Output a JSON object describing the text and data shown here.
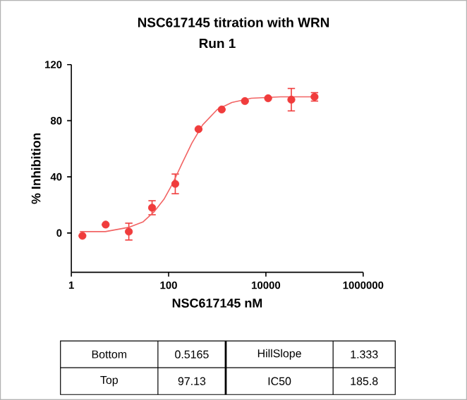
{
  "chart_data": {
    "type": "scatter",
    "title": "NSC617145 titration with WRN",
    "subtitle": "Run 1",
    "xlabel": "NSC617145 nM",
    "ylabel": "% Inhibition",
    "log": "x",
    "xlim": [
      1,
      1000000
    ],
    "xticks": [
      1,
      100,
      10000,
      1000000
    ],
    "ylim": [
      -28,
      120
    ],
    "yticks": [
      0,
      40,
      80,
      120
    ],
    "series": [
      {
        "color": "#f03c3c",
        "marker": "circle",
        "x": [
          1.69,
          5.08,
          15.2,
          45.7,
          137,
          412,
          1235,
          3704,
          11111,
          33333,
          100000
        ],
        "values": [
          -2,
          6,
          1,
          18,
          35,
          74,
          88,
          94,
          96,
          95,
          97
        ],
        "errors": [
          null,
          null,
          6,
          5,
          7,
          null,
          null,
          null,
          null,
          8,
          3
        ]
      },
      {
        "type": "line",
        "color": "#f26464",
        "marker": "none",
        "x": [
          1.5,
          5,
          15,
          30,
          50,
          80,
          120,
          185.8,
          300,
          500,
          1000,
          2000,
          5000,
          20000,
          100000
        ],
        "values": [
          1,
          1,
          4,
          8,
          15,
          24,
          35,
          49,
          64,
          77,
          88,
          93,
          96,
          97,
          97
        ]
      }
    ],
    "annotations": [
      "Bottom",
      "0.5165",
      "HillSlope",
      "1.333",
      "Top",
      "97.13",
      "IC50",
      "185.8"
    ]
  }
}
